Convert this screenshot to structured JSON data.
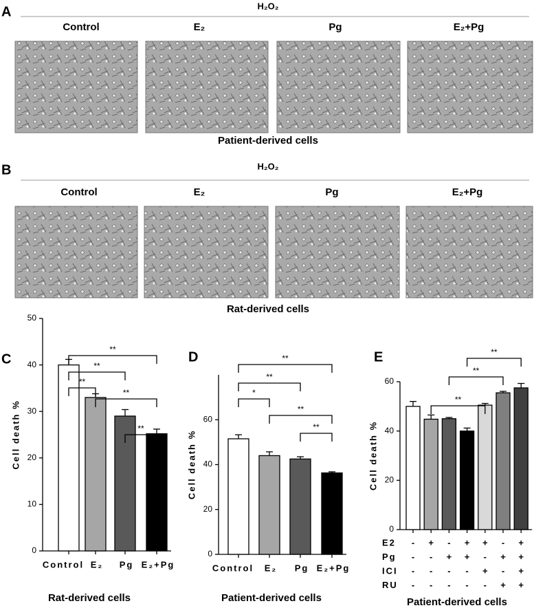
{
  "panels": [
    {
      "letter": "A",
      "treatment": "H₂O₂",
      "labels": [
        "Control",
        "E₂",
        "Pg",
        "E₂+Pg"
      ],
      "caption": "Patient-derived cells"
    },
    {
      "letter": "B",
      "treatment": "H₂O₂",
      "labels": [
        "Control",
        "E₂",
        "Pg",
        "E₂+Pg"
      ],
      "caption": "Rat-derived cells"
    }
  ],
  "chart_data": [
    {
      "type": "bar",
      "letter": "C",
      "ylabel": "Cell death %",
      "caption": "Rat-derived cells",
      "categories": [
        "Control",
        "E₂",
        "Pg",
        "E₂+Pg"
      ],
      "values": [
        40,
        33,
        29,
        25.2
      ],
      "errors": [
        1.2,
        0.8,
        1.4,
        1
      ],
      "colors": [
        "#ffffff",
        "#a6a6a6",
        "#595959",
        "#000000"
      ],
      "ylim": [
        0,
        50
      ],
      "yticks": [
        0,
        10,
        20,
        30,
        40,
        50
      ],
      "significance": [
        {
          "label": "**",
          "between": [
            0,
            1
          ]
        },
        {
          "label": "**",
          "between": [
            0,
            2
          ]
        },
        {
          "label": "**",
          "between": [
            0,
            3
          ]
        },
        {
          "label": "**",
          "between": [
            1,
            3
          ]
        },
        {
          "label": "**",
          "between": [
            2,
            3
          ]
        }
      ]
    },
    {
      "type": "bar",
      "letter": "D",
      "ylabel": "Cell death %",
      "caption": "Patient-derived cells",
      "categories": [
        "Control",
        "E₂",
        "Pg",
        "E₂+Pg"
      ],
      "values": [
        51.5,
        44,
        42.5,
        36.3
      ],
      "errors": [
        1.8,
        1.7,
        1,
        0.5
      ],
      "colors": [
        "#ffffff",
        "#a6a6a6",
        "#595959",
        "#000000"
      ],
      "ylim": [
        0,
        80
      ],
      "yticks": [
        0,
        20,
        40,
        60
      ],
      "significance": [
        {
          "label": "*",
          "between": [
            0,
            1
          ]
        },
        {
          "label": "**",
          "between": [
            0,
            2
          ]
        },
        {
          "label": "**",
          "between": [
            0,
            3
          ]
        },
        {
          "label": "**",
          "between": [
            1,
            3
          ]
        },
        {
          "label": "**",
          "between": [
            2,
            3
          ]
        }
      ]
    },
    {
      "type": "bar",
      "letter": "E",
      "ylabel": "Cell death %",
      "caption": "Patient-derived cells",
      "categories": [
        null,
        null,
        null,
        null,
        null,
        null,
        null
      ],
      "values": [
        50,
        44.8,
        45,
        40,
        50.5,
        55.5,
        57.5
      ],
      "errors": [
        2,
        1.7,
        0.5,
        1.2,
        0.7,
        0.6,
        1.8
      ],
      "colors": [
        "#ffffff",
        "#a6a6a6",
        "#595959",
        "#000000",
        "#d9d9d9",
        "#7f7f7f",
        "#404040"
      ],
      "ylim": [
        0,
        60
      ],
      "yticks": [
        0,
        20,
        40,
        60
      ],
      "conditions": [
        {
          "label": "E2",
          "signs": [
            "-",
            "+",
            "-",
            "+",
            "+",
            "-",
            "+"
          ]
        },
        {
          "label": "Pg",
          "signs": [
            "-",
            "-",
            "+",
            "+",
            "-",
            "+",
            "+"
          ]
        },
        {
          "label": "ICI",
          "signs": [
            "-",
            "-",
            "-",
            "-",
            "+",
            "-",
            "+"
          ]
        },
        {
          "label": "RU",
          "signs": [
            "-",
            "-",
            "-",
            "-",
            "-",
            "+",
            "+"
          ]
        }
      ],
      "significance": [
        {
          "label": "**",
          "between": [
            1,
            4
          ]
        },
        {
          "label": "**",
          "between": [
            2,
            5
          ]
        },
        {
          "label": "**",
          "between": [
            3,
            6
          ]
        }
      ]
    }
  ]
}
